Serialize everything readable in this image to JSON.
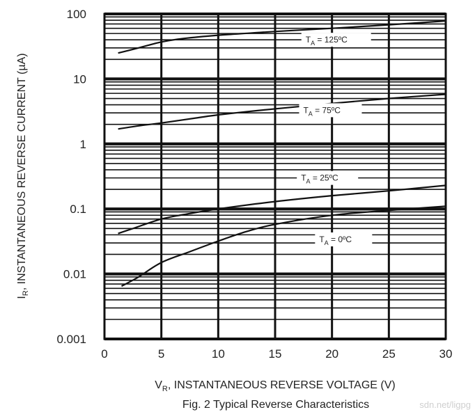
{
  "chart_data": {
    "type": "line",
    "title": "",
    "xlabel_main": "V",
    "xlabel_sub": "R",
    "xlabel_rest": ", INSTANTANEOUS REVERSE VOLTAGE (V)",
    "ylabel_main": "I",
    "ylabel_sub": "R",
    "ylabel_rest": ", INSTANTANEOUS REVERSE CURRENT (µA)",
    "xlim": [
      0,
      30
    ],
    "ylim": [
      0.001,
      100
    ],
    "yscale": "log",
    "grid": true,
    "x_ticks": [
      "0",
      "5",
      "10",
      "15",
      "20",
      "25",
      "30"
    ],
    "y_ticks": [
      "0.001",
      "0.01",
      "0.1",
      "1",
      "10",
      "100"
    ],
    "series": [
      {
        "label_main": "T",
        "label_sub": "A",
        "label_rest": " = 125ºC",
        "x": [
          1.2,
          3,
          5,
          7,
          10,
          13,
          16,
          20,
          25,
          30
        ],
        "y": [
          25,
          30,
          37,
          42,
          47,
          51,
          55,
          60,
          68,
          78
        ]
      },
      {
        "label_main": "T",
        "label_sub": "A",
        "label_rest": " = 75ºC",
        "x": [
          1.2,
          3,
          5,
          8,
          10,
          13,
          16,
          20,
          25,
          30
        ],
        "y": [
          1.7,
          1.9,
          2.1,
          2.5,
          2.8,
          3.2,
          3.6,
          4.2,
          5.0,
          5.8
        ]
      },
      {
        "label_main": "T",
        "label_sub": "A",
        "label_rest": " = 25ºC",
        "x": [
          1.2,
          2.5,
          5,
          7.5,
          10,
          15,
          20,
          25,
          30
        ],
        "y": [
          0.042,
          0.05,
          0.07,
          0.085,
          0.1,
          0.13,
          0.16,
          0.19,
          0.23
        ]
      },
      {
        "label_main": "T",
        "label_sub": "A",
        "label_rest": " = 0ºC",
        "x": [
          1.5,
          3,
          5,
          7.5,
          10,
          12.5,
          15,
          20,
          25,
          30
        ],
        "y": [
          0.0065,
          0.009,
          0.015,
          0.022,
          0.032,
          0.045,
          0.058,
          0.08,
          0.095,
          0.11
        ]
      }
    ]
  },
  "caption": "Fig. 2  Typical Reverse Characteristics",
  "watermark": "sdn.net/ligpg"
}
